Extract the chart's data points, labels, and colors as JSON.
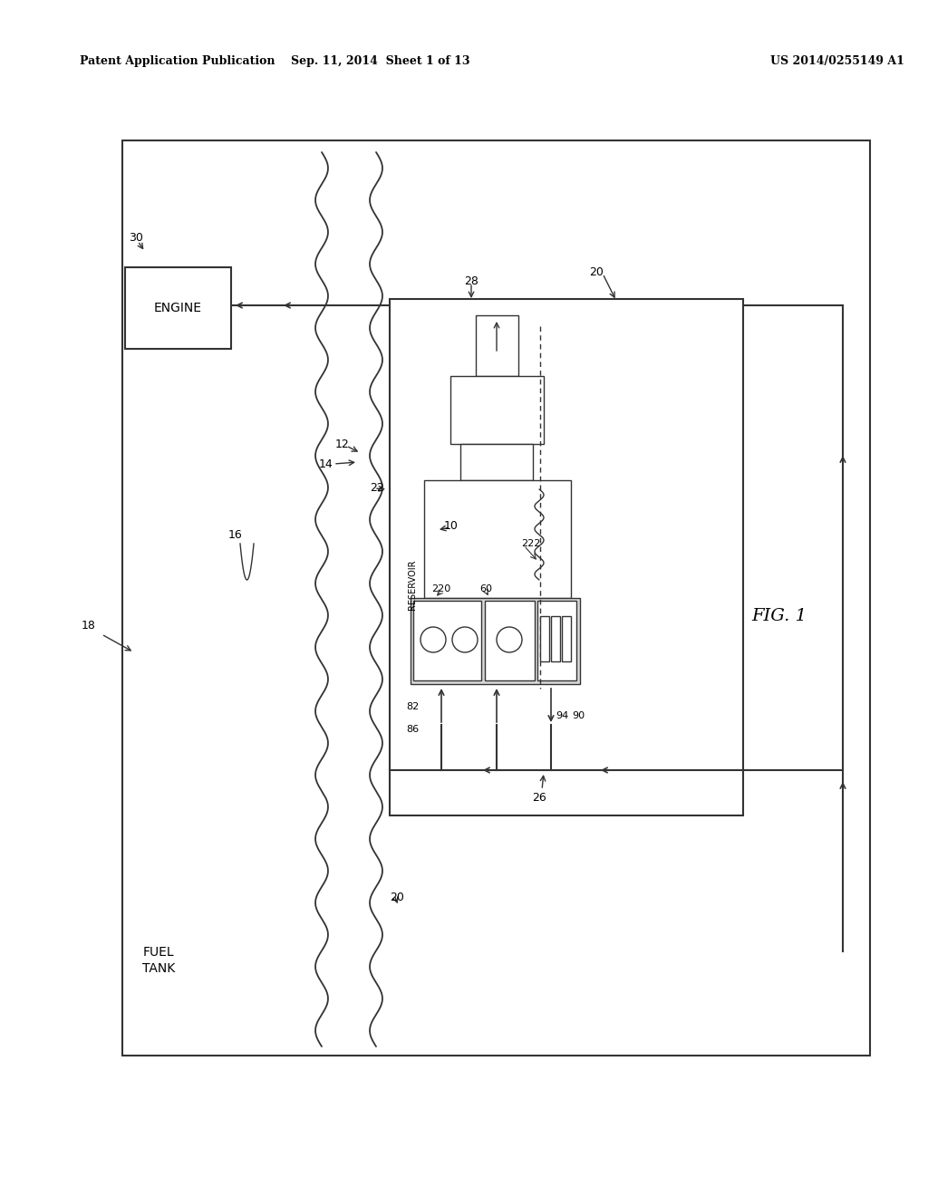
{
  "bg_color": "#ffffff",
  "header_left": "Patent Application Publication",
  "header_center": "Sep. 11, 2014  Sheet 1 of 13",
  "header_right": "US 2014/0255149 A1",
  "fig_label": "FIG. 1",
  "line_color": "#333333",
  "lw_main": 1.5,
  "lw_thin": 1.0
}
